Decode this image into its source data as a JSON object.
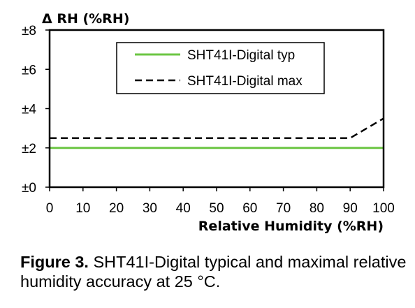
{
  "chart_data": {
    "type": "line",
    "ylabel": "Δ RH (%RH)",
    "xlabel": "Relative Humidity (%RH)",
    "xlim": [
      0,
      100
    ],
    "ylim": [
      0,
      8
    ],
    "x_ticks": [
      0,
      10,
      20,
      30,
      40,
      50,
      60,
      70,
      80,
      90,
      100
    ],
    "y_ticks": [
      0,
      2,
      4,
      6,
      8
    ],
    "y_tick_labels": [
      "±0",
      "±2",
      "±4",
      "±6",
      "±8"
    ],
    "grid": false,
    "legend_position": "top-center",
    "series": [
      {
        "name": "SHT41I-Digital typ",
        "color": "#6cc644",
        "style": "solid",
        "x": [
          0,
          100
        ],
        "y": [
          2,
          2
        ]
      },
      {
        "name": "SHT41I-Digital max",
        "color": "#000000",
        "style": "dashed",
        "x": [
          0,
          90,
          100
        ],
        "y": [
          2.5,
          2.5,
          3.5
        ]
      }
    ]
  },
  "caption": {
    "label": "Figure 3.",
    "text": " SHT41I-Digital typical and maximal relative humidity accuracy at 25 °C."
  }
}
